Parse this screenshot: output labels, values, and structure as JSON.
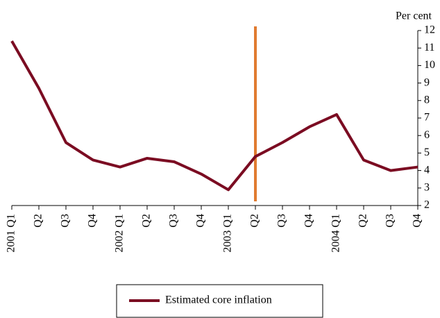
{
  "chart_data": {
    "type": "line",
    "y_label": "Per cent",
    "categories": [
      "2001 Q1",
      "Q2",
      "Q3",
      "Q4",
      "2002 Q1",
      "Q2",
      "Q3",
      "Q4",
      "2003 Q1",
      "Q2",
      "Q3",
      "Q4",
      "2004 Q1",
      "Q2",
      "Q3",
      "Q4"
    ],
    "series": [
      {
        "name": "Estimated core inflation",
        "color": "#7b0c22",
        "values": [
          11.4,
          8.7,
          5.6,
          4.6,
          4.2,
          4.7,
          4.5,
          3.8,
          2.9,
          4.8,
          5.6,
          6.5,
          7.2,
          4.6,
          4.0,
          4.2
        ]
      }
    ],
    "ylim": [
      2,
      12
    ],
    "yticks": [
      2,
      3,
      4,
      5,
      6,
      7,
      8,
      9,
      10,
      11,
      12
    ],
    "marker_line": {
      "category_index": 9,
      "color": "#e07b30"
    },
    "legend": "bottom"
  }
}
